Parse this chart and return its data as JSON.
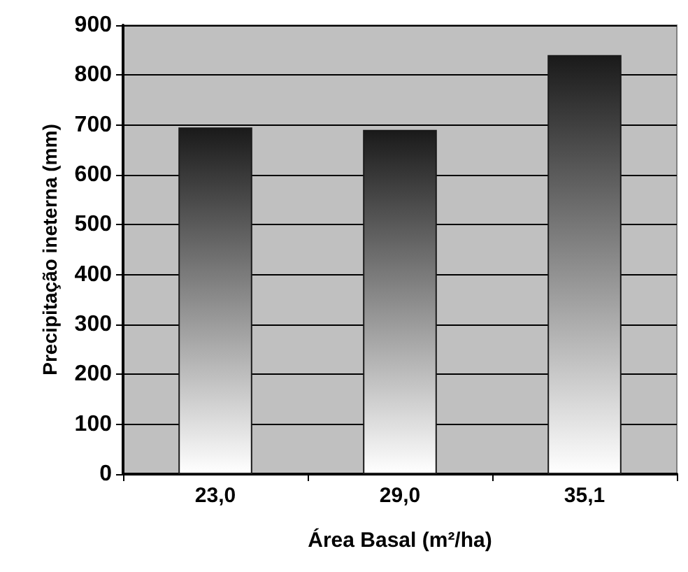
{
  "chart_data": {
    "type": "bar",
    "xlabel": "Área Basal (m²/ha)",
    "ylabel": "Precipitação ineterna (mm)",
    "categories": [
      "23,0",
      "29,0",
      "35,1"
    ],
    "values": [
      695,
      690,
      840
    ],
    "color": "#1a1a1a",
    "ylim": [
      0,
      900
    ],
    "yticks": [
      0,
      100,
      200,
      300,
      400,
      500,
      600,
      700,
      800,
      900
    ],
    "grid": "y"
  }
}
